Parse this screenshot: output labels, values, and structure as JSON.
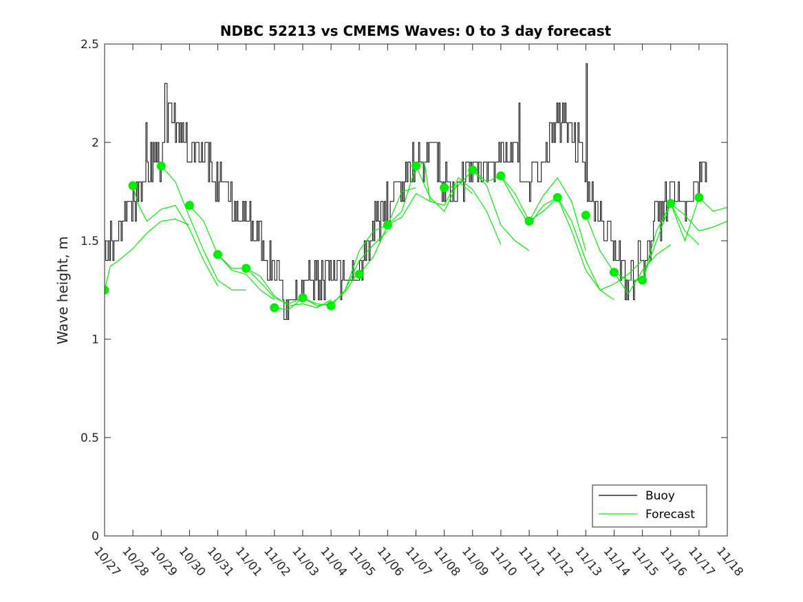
{
  "chart_data": {
    "type": "line",
    "title": "NDBC 52213 vs CMEMS Waves: 0 to 3 day forecast",
    "ylabel": "Wave height, m",
    "xlabel": "",
    "ylim": [
      0,
      2.5
    ],
    "yticks": [
      "0",
      "0.5",
      "1",
      "1.5",
      "2",
      "2.5"
    ],
    "xlim": [
      0,
      22
    ],
    "xticks": [
      "10/27",
      "10/28",
      "10/29",
      "10/30",
      "10/31",
      "11/01",
      "11/02",
      "11/03",
      "11/04",
      "11/05",
      "11/06",
      "11/07",
      "11/08",
      "11/09",
      "11/10",
      "11/11",
      "11/12",
      "11/13",
      "11/14",
      "11/15",
      "11/16",
      "11/17",
      "11/18"
    ],
    "grid": false,
    "legend": {
      "position": "bottom-right",
      "entries": [
        "Buoy",
        "Forecast"
      ]
    },
    "colors": {
      "buoy": "#000000",
      "forecast": "#00ee00",
      "axes": "#262626"
    },
    "buoy": {
      "name": "Buoy",
      "step_days": 0.0417,
      "anchors": {
        "x": [
          0,
          0.3,
          0.6,
          1.0,
          1.5,
          2.0,
          2.3,
          2.7,
          3.0,
          3.5,
          4.0,
          4.5,
          5.0,
          5.5,
          6.0,
          6.3,
          7.0,
          7.5,
          8.0,
          8.5,
          9.0,
          9.5,
          10.0,
          10.5,
          11.0,
          11.5,
          12.0,
          12.5,
          13.0,
          13.5,
          14.0,
          14.5,
          15.0,
          15.5,
          16.0,
          16.5,
          17.0,
          17.5,
          18.0,
          18.5,
          19.0,
          19.5,
          20.0,
          20.5,
          21.0,
          21.3
        ],
        "y": [
          1.5,
          1.45,
          1.6,
          1.7,
          1.85,
          1.95,
          2.1,
          2.05,
          1.95,
          1.95,
          1.8,
          1.7,
          1.6,
          1.5,
          1.35,
          1.2,
          1.25,
          1.3,
          1.35,
          1.3,
          1.35,
          1.6,
          1.7,
          1.8,
          1.9,
          1.95,
          1.8,
          1.8,
          1.85,
          1.85,
          1.95,
          1.95,
          1.75,
          1.95,
          2.1,
          2.1,
          1.8,
          1.6,
          1.45,
          1.3,
          1.4,
          1.6,
          1.75,
          1.6,
          1.85,
          1.8
        ]
      },
      "noise_amplitude": 0.1,
      "spikes": [
        {
          "x": 2.15,
          "y": 2.3
        },
        {
          "x": 17.0,
          "y": 2.4
        },
        {
          "x": 14.65,
          "y": 2.2
        },
        {
          "x": 1.45,
          "y": 2.1
        }
      ]
    },
    "forecast": {
      "name": "Forecast",
      "series": [
        {
          "x": [
            0.0,
            0.2,
            0.5,
            1.0,
            1.5,
            2.0,
            2.5,
            3.0
          ],
          "y": [
            1.25,
            1.37,
            1.4,
            1.46,
            1.54,
            1.6,
            1.61,
            1.58
          ]
        },
        {
          "x": [
            1.0,
            1.2,
            1.5,
            2.0,
            2.5,
            3.0,
            3.5,
            4.0
          ],
          "y": [
            1.78,
            1.68,
            1.6,
            1.66,
            1.68,
            1.56,
            1.4,
            1.27
          ]
        },
        {
          "x": [
            2.0,
            2.5,
            3.0,
            3.5,
            4.0,
            4.5,
            5.0
          ],
          "y": [
            1.88,
            1.8,
            1.62,
            1.45,
            1.3,
            1.25,
            1.25
          ]
        },
        {
          "x": [
            3.0,
            3.5,
            4.0,
            4.5,
            5.0,
            5.5,
            6.0
          ],
          "y": [
            1.68,
            1.6,
            1.43,
            1.35,
            1.33,
            1.25,
            1.2
          ]
        },
        {
          "x": [
            4.0,
            4.5,
            5.0,
            5.5,
            6.0,
            6.5,
            7.0
          ],
          "y": [
            1.43,
            1.36,
            1.36,
            1.29,
            1.21,
            1.18,
            1.21
          ]
        },
        {
          "x": [
            5.0,
            5.5,
            6.0,
            6.5,
            7.0,
            7.5,
            8.0
          ],
          "y": [
            1.36,
            1.32,
            1.22,
            1.17,
            1.18,
            1.16,
            1.2
          ]
        },
        {
          "x": [
            6.0,
            6.5,
            7.0,
            7.5,
            8.0,
            8.5,
            9.0
          ],
          "y": [
            1.16,
            1.15,
            1.21,
            1.17,
            1.18,
            1.24,
            1.35
          ]
        },
        {
          "x": [
            7.0,
            7.5,
            8.0,
            8.5,
            9.0,
            9.5,
            10.0
          ],
          "y": [
            1.21,
            1.18,
            1.17,
            1.25,
            1.4,
            1.48,
            1.55
          ]
        },
        {
          "x": [
            8.0,
            8.5,
            9.0,
            9.5,
            10.0,
            10.5,
            11.0
          ],
          "y": [
            1.17,
            1.25,
            1.45,
            1.55,
            1.58,
            1.75,
            1.77
          ]
        },
        {
          "x": [
            9.0,
            9.5,
            10.0,
            10.5,
            11.0,
            11.5,
            12.0
          ],
          "y": [
            1.33,
            1.42,
            1.58,
            1.62,
            1.74,
            1.7,
            1.68
          ]
        },
        {
          "x": [
            10.0,
            10.5,
            11.0,
            11.5,
            12.0,
            12.5,
            13.0
          ],
          "y": [
            1.58,
            1.65,
            1.88,
            1.72,
            1.65,
            1.8,
            1.74
          ]
        },
        {
          "x": [
            11.0,
            11.3,
            11.5,
            12.0,
            12.5,
            13.0,
            13.5,
            14.0
          ],
          "y": [
            1.88,
            1.9,
            1.7,
            1.68,
            1.82,
            1.76,
            1.65,
            1.48
          ]
        },
        {
          "x": [
            12.0,
            12.5,
            13.0,
            13.5,
            14.0,
            14.5,
            15.0
          ],
          "y": [
            1.77,
            1.78,
            1.86,
            1.78,
            1.58,
            1.5,
            1.45
          ]
        },
        {
          "x": [
            13.0,
            13.5,
            14.0,
            14.5,
            15.0,
            15.5,
            16.0
          ],
          "y": [
            1.86,
            1.8,
            1.83,
            1.7,
            1.58,
            1.68,
            1.72
          ]
        },
        {
          "x": [
            14.0,
            14.5,
            15.0,
            15.5,
            16.0,
            16.5,
            17.0
          ],
          "y": [
            1.83,
            1.74,
            1.6,
            1.73,
            1.82,
            1.7,
            1.45
          ]
        },
        {
          "x": [
            15.0,
            15.5,
            16.0,
            16.5,
            17.0,
            17.5,
            18.0
          ],
          "y": [
            1.6,
            1.65,
            1.72,
            1.6,
            1.4,
            1.25,
            1.2
          ]
        },
        {
          "x": [
            16.0,
            16.5,
            17.0,
            17.5,
            18.0,
            18.5,
            19.0
          ],
          "y": [
            1.72,
            1.55,
            1.35,
            1.25,
            1.28,
            1.33,
            1.4
          ]
        },
        {
          "x": [
            17.0,
            17.5,
            18.0,
            18.5,
            19.0,
            19.5,
            20.0
          ],
          "y": [
            1.63,
            1.45,
            1.34,
            1.23,
            1.35,
            1.43,
            1.48
          ]
        },
        {
          "x": [
            18.0,
            18.5,
            19.0,
            19.5,
            20.0,
            20.5,
            21.0
          ],
          "y": [
            1.34,
            1.3,
            1.3,
            1.5,
            1.69,
            1.55,
            1.48
          ]
        },
        {
          "x": [
            19.0,
            19.5,
            20.0,
            20.5,
            21.0,
            21.5,
            22.0
          ],
          "y": [
            1.3,
            1.55,
            1.69,
            1.63,
            1.55,
            1.57,
            1.6
          ]
        },
        {
          "x": [
            20.0,
            20.5,
            21.0,
            21.5,
            22.0
          ],
          "y": [
            1.69,
            1.5,
            1.72,
            1.65,
            1.67
          ]
        }
      ],
      "markers": {
        "x": [
          0,
          1,
          2,
          3,
          4,
          5,
          6,
          7,
          8,
          9,
          10,
          11,
          12,
          13,
          14,
          15,
          16,
          17,
          18,
          19,
          20,
          21
        ],
        "y": [
          1.25,
          1.78,
          1.88,
          1.68,
          1.43,
          1.36,
          1.16,
          1.21,
          1.17,
          1.33,
          1.58,
          1.88,
          1.77,
          1.86,
          1.83,
          1.6,
          1.72,
          1.63,
          1.34,
          1.3,
          1.69,
          1.72
        ]
      }
    }
  }
}
